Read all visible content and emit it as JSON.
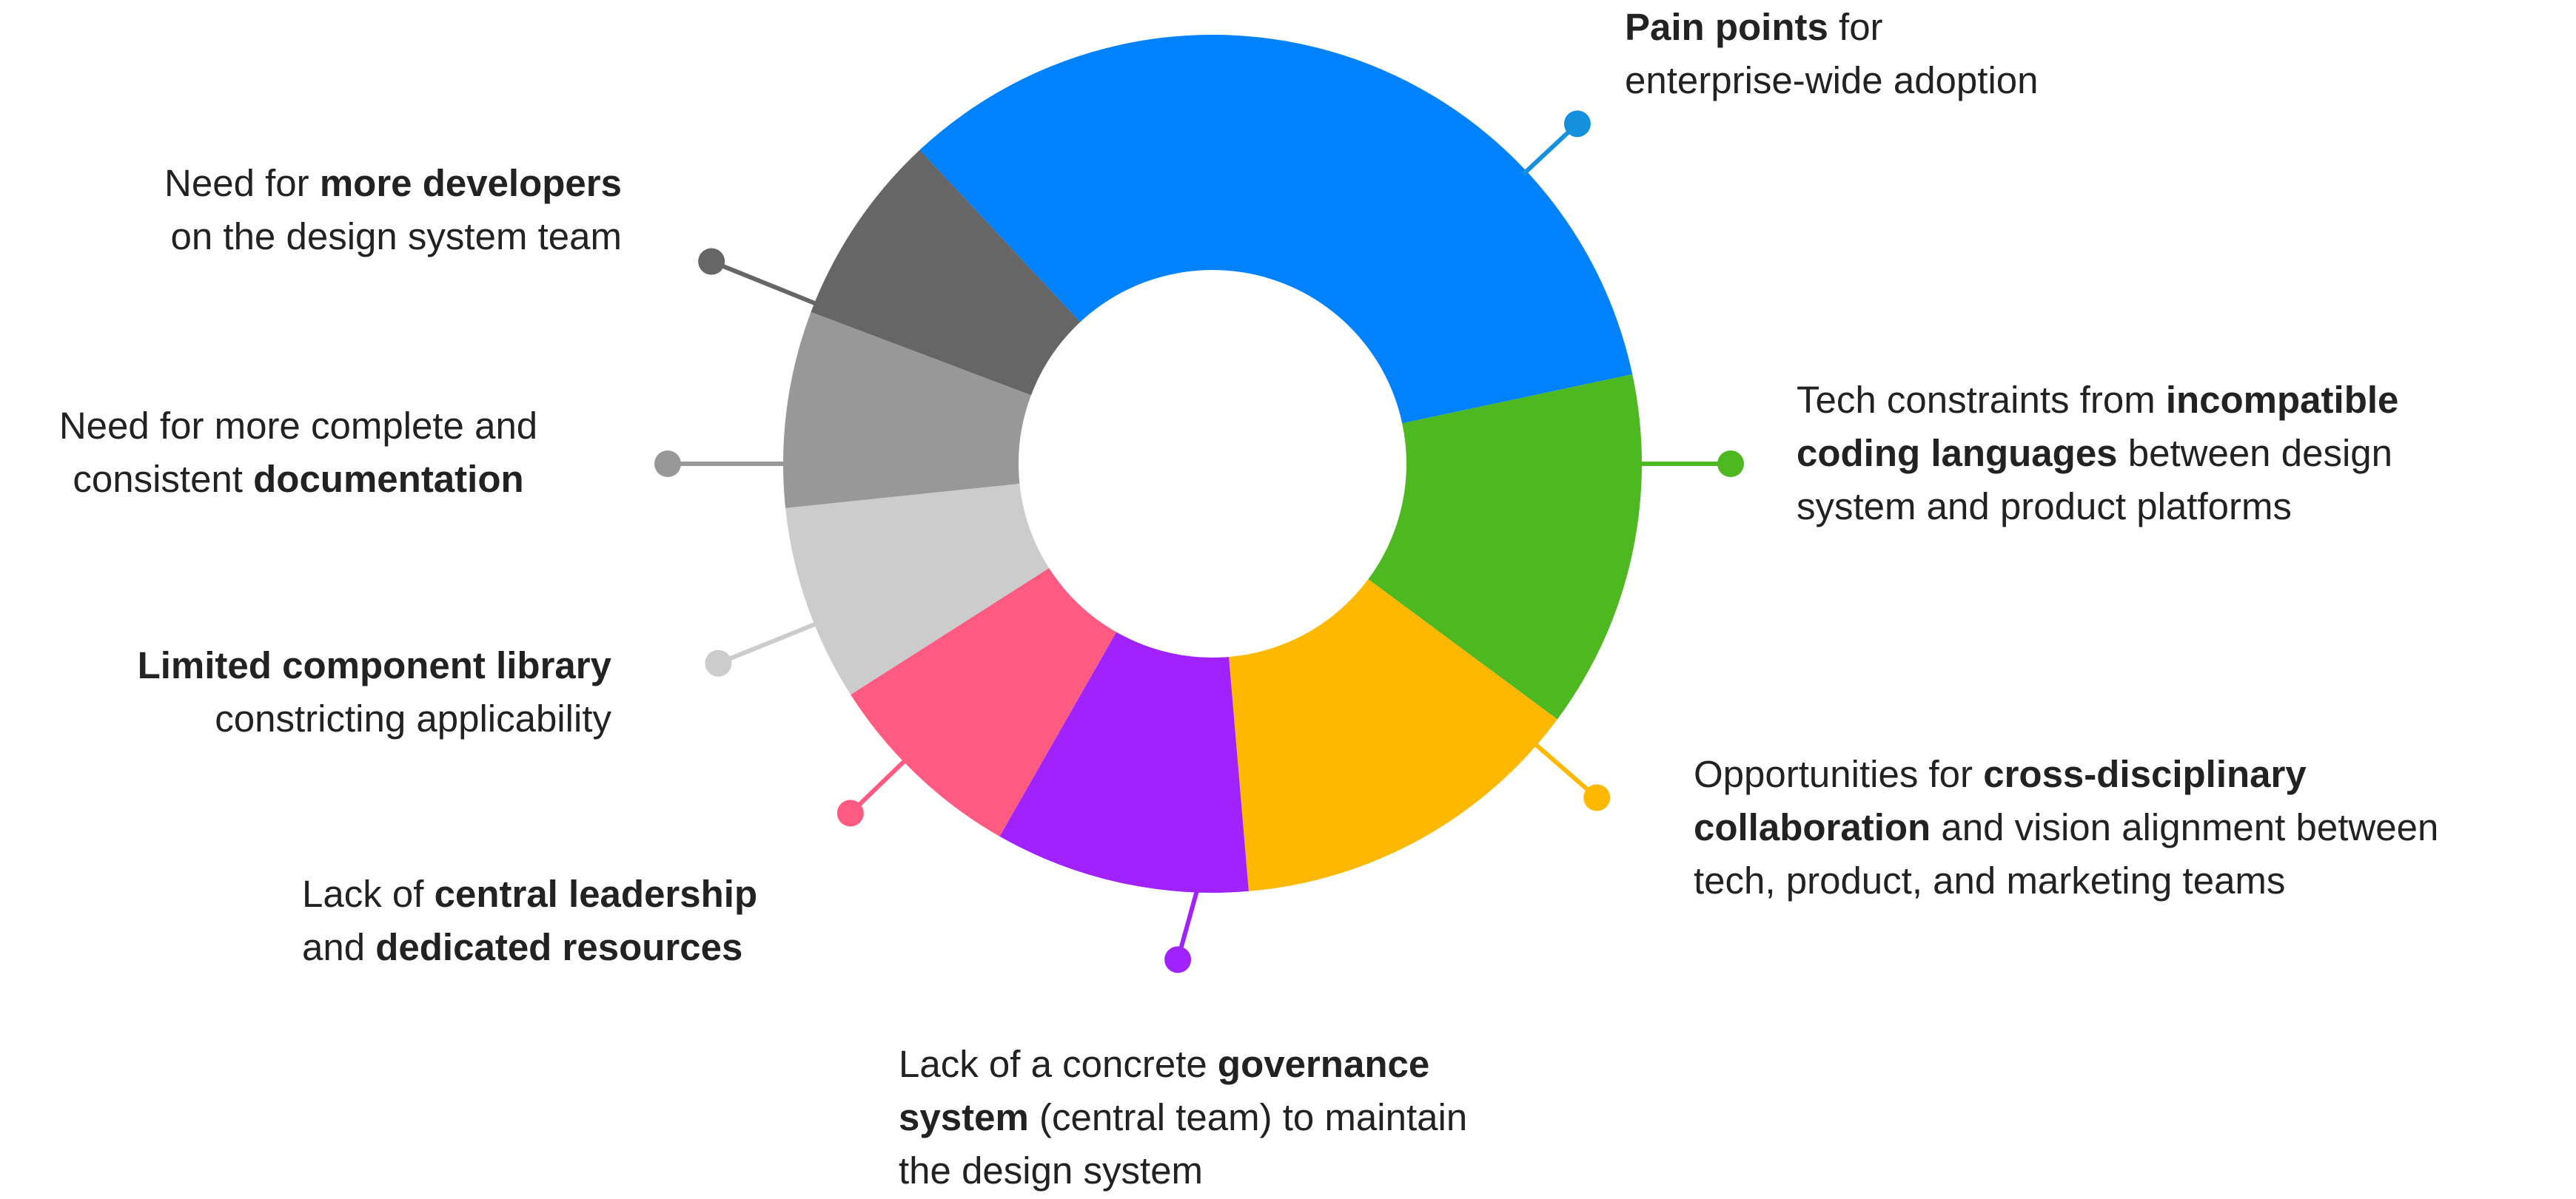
{
  "chart_data": {
    "type": "pie",
    "variant": "donut",
    "legend": "none",
    "slices": [
      {
        "value": 33.6,
        "color": "#0082FF",
        "label_parts": [
          [
            {
              "t": "Pain points",
              "b": true
            },
            {
              "t": " for",
              "b": false
            }
          ],
          [
            {
              "t": "enterprise-wide adoption",
              "b": false
            }
          ]
        ]
      },
      {
        "value": 13.5,
        "color": "#4DB820",
        "label_parts": [
          [
            {
              "t": "Tech constraints from ",
              "b": false
            },
            {
              "t": "incompatible",
              "b": true
            }
          ],
          [
            {
              "t": "coding languages",
              "b": true
            },
            {
              "t": " between design",
              "b": false
            }
          ],
          [
            {
              "t": "system and product platforms",
              "b": false
            }
          ]
        ]
      },
      {
        "value": 13.5,
        "color": "#FFB800",
        "label_parts": [
          [
            {
              "t": "Opportunities for ",
              "b": false
            },
            {
              "t": "cross-disciplinary",
              "b": true
            }
          ],
          [
            {
              "t": "collaboration",
              "b": true
            },
            {
              "t": " and vision alignment between",
              "b": false
            }
          ],
          [
            {
              "t": "tech, product, and marketing teams",
              "b": false
            }
          ]
        ]
      },
      {
        "value": 9.6,
        "color": "#A023FF",
        "label_parts": [
          [
            {
              "t": "Lack of a concrete ",
              "b": false
            },
            {
              "t": "governance",
              "b": true
            }
          ],
          [
            {
              "t": "system",
              "b": true
            },
            {
              "t": " (central team) to maintain",
              "b": false
            }
          ],
          [
            {
              "t": "the design system",
              "b": false
            }
          ]
        ]
      },
      {
        "value": 7.7,
        "color": "#FF5A82",
        "label_parts": [
          [
            {
              "t": "Lack of ",
              "b": false
            },
            {
              "t": "central leadership",
              "b": true
            }
          ],
          [
            {
              "t": "and ",
              "b": false
            },
            {
              "t": "dedicated resources",
              "b": true
            }
          ]
        ]
      },
      {
        "value": 7.4,
        "color": "#CCCCCC",
        "label_parts": [
          [
            {
              "t": "Limited component library",
              "b": true
            }
          ],
          [
            {
              "t": "constricting applicability",
              "b": false
            }
          ]
        ]
      },
      {
        "value": 7.4,
        "color": "#989898",
        "label_parts": [
          [
            {
              "t": "Need for more complete and",
              "b": false
            }
          ],
          [
            {
              "t": "consistent ",
              "b": false
            },
            {
              "t": "documentation",
              "b": true
            }
          ]
        ]
      },
      {
        "value": 7.3,
        "color": "#666666",
        "label_parts": [
          [
            {
              "t": "Need for ",
              "b": false
            },
            {
              "t": "more developers",
              "b": true
            }
          ],
          [
            {
              "t": "on the design system team",
              "b": false
            }
          ]
        ]
      }
    ]
  },
  "colors": {
    "pin_0": "#1591DB",
    "background": "#FFFFFF",
    "text": "#222222"
  }
}
